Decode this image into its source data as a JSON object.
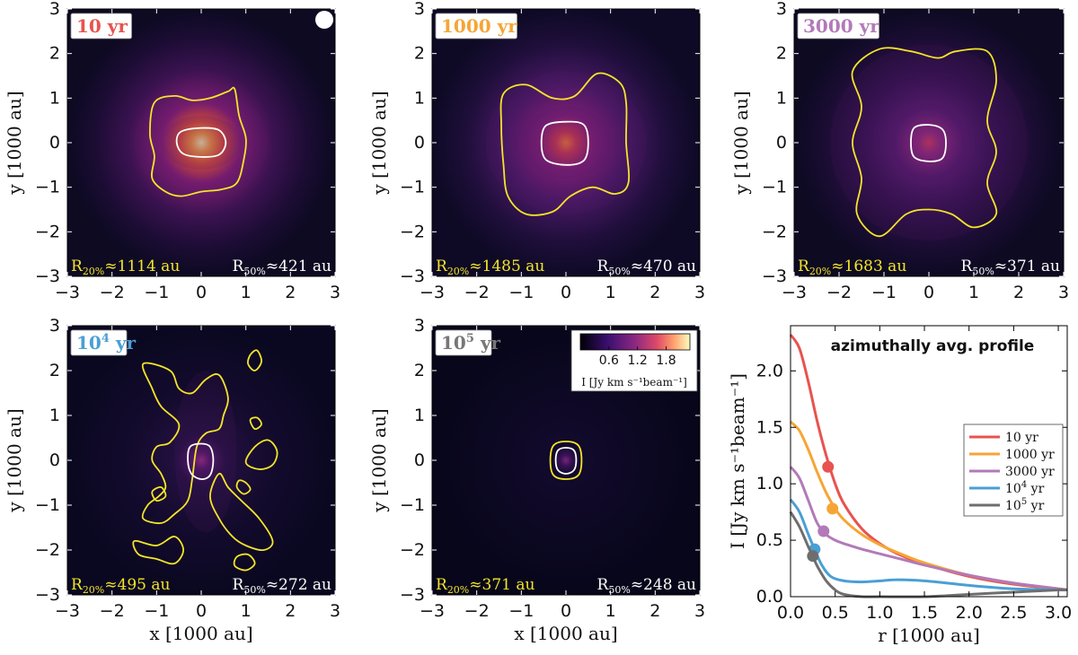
{
  "chart_data": {
    "type": "heatmap",
    "map_panels": [
      {
        "id": "p1",
        "label": "10 yr",
        "label_color": "#e8534f",
        "r20": "≈1114 au",
        "r50": "≈421 au",
        "peak": 2.32,
        "sigma": 0.55,
        "beam_marker": true
      },
      {
        "id": "p2",
        "label": "1000 yr",
        "label_color": "#f6a535",
        "r20": "≈1485 au",
        "r50": "≈470 au",
        "peak": 1.55,
        "sigma": 0.7,
        "beam_marker": false
      },
      {
        "id": "p3",
        "label": "3000 yr",
        "label_color": "#b27ab9",
        "r20": "≈1683 au",
        "r50": "≈371 au",
        "peak": 1.15,
        "sigma": 0.8,
        "beam_marker": false
      },
      {
        "id": "p4",
        "label_base": "10",
        "label_exp": "4",
        "label_tail": " yr",
        "label_color": "#4a9fd4",
        "r20": "≈495 au",
        "r50": "≈272 au",
        "peak": 0.85,
        "sigma": 0.35,
        "beam_marker": false
      },
      {
        "id": "p5",
        "label_base": "10",
        "label_exp": "5",
        "label_tail": " yr",
        "label_color": "#777777",
        "r20": "≈371 au",
        "r50": "≈248 au",
        "peak": 0.75,
        "sigma": 0.18,
        "beam_marker": false
      }
    ],
    "r20_prefix": "R",
    "r20_sub": "20%",
    "r50_prefix": "R",
    "r50_sub": "50%",
    "map_xlim": [
      -3,
      3
    ],
    "map_ylim": [
      -3,
      3
    ],
    "map_ticks": [
      -3,
      -2,
      -1,
      0,
      1,
      2,
      3
    ],
    "map_tick_labels": [
      "−3",
      "−2",
      "−1",
      "0",
      "1",
      "2",
      "3"
    ],
    "map_xlabel": "x [1000 au]",
    "map_ylabel": "y [1000 au]",
    "colorbar": {
      "ticks": [
        0.6,
        1.2,
        1.8
      ],
      "tick_labels": [
        "0.6",
        "1.2",
        "1.8"
      ],
      "range": [
        0,
        2.3
      ],
      "label": "I [Jy km s⁻¹beam⁻¹]"
    },
    "profile": {
      "type": "line",
      "title": "azimuthally avg. profile",
      "xlabel": "r [1000 au]",
      "ylabel": "I [Jy km s⁻¹beam⁻¹]",
      "xlim": [
        0,
        3.1
      ],
      "ylim": [
        0,
        2.4
      ],
      "xticks": [
        0.0,
        0.5,
        1.0,
        1.5,
        2.0,
        2.5,
        3.0
      ],
      "xtick_labels": [
        "0.0",
        "0.5",
        "1.0",
        "1.5",
        "2.0",
        "2.5",
        "3.0"
      ],
      "yticks": [
        0.0,
        0.5,
        1.0,
        1.5,
        2.0
      ],
      "ytick_labels": [
        "0.0",
        "0.5",
        "1.0",
        "1.5",
        "2.0"
      ],
      "series": [
        {
          "name": "10 yr",
          "name_base": "10 yr",
          "color": "#e8534f",
          "x": [
            0,
            0.1,
            0.2,
            0.3,
            0.4,
            0.5,
            0.6,
            0.8,
            1.0,
            1.2,
            1.5,
            2.0,
            2.5,
            3.0,
            3.1
          ],
          "y": [
            2.32,
            2.2,
            1.9,
            1.55,
            1.25,
            1.0,
            0.82,
            0.6,
            0.47,
            0.38,
            0.29,
            0.18,
            0.11,
            0.07,
            0.06
          ],
          "marker": [
            0.42,
            1.15
          ]
        },
        {
          "name": "1000 yr",
          "name_base": "1000 yr",
          "color": "#f6a535",
          "x": [
            0,
            0.1,
            0.2,
            0.3,
            0.4,
            0.5,
            0.6,
            0.8,
            1.0,
            1.2,
            1.5,
            2.0,
            2.5,
            3.0,
            3.1
          ],
          "y": [
            1.55,
            1.47,
            1.3,
            1.1,
            0.92,
            0.78,
            0.68,
            0.55,
            0.46,
            0.39,
            0.3,
            0.19,
            0.12,
            0.07,
            0.06
          ],
          "marker": [
            0.47,
            0.78
          ]
        },
        {
          "name": "3000 yr",
          "name_base": "3000 yr",
          "color": "#b27ab9",
          "x": [
            0,
            0.1,
            0.2,
            0.3,
            0.4,
            0.5,
            0.6,
            0.8,
            1.0,
            1.2,
            1.5,
            2.0,
            2.5,
            3.0,
            3.1
          ],
          "y": [
            1.15,
            1.05,
            0.85,
            0.65,
            0.55,
            0.5,
            0.47,
            0.42,
            0.38,
            0.34,
            0.28,
            0.19,
            0.12,
            0.07,
            0.06
          ],
          "marker": [
            0.37,
            0.58
          ]
        },
        {
          "name": "10⁴ yr",
          "name_base": "10",
          "name_exp": "4",
          "name_tail": " yr",
          "color": "#4a9fd4",
          "x": [
            0,
            0.1,
            0.2,
            0.27,
            0.35,
            0.45,
            0.6,
            0.8,
            1.0,
            1.2,
            1.5,
            2.0,
            2.5,
            3.0,
            3.1
          ],
          "y": [
            0.86,
            0.75,
            0.55,
            0.42,
            0.28,
            0.18,
            0.14,
            0.13,
            0.14,
            0.15,
            0.14,
            0.1,
            0.07,
            0.06,
            0.06
          ],
          "marker": [
            0.27,
            0.42
          ]
        },
        {
          "name": "10⁵ yr",
          "name_base": "10",
          "name_exp": "5",
          "name_tail": " yr",
          "color": "#6e6e6e",
          "x": [
            0,
            0.1,
            0.2,
            0.25,
            0.3,
            0.4,
            0.5,
            0.6,
            0.8,
            1.0,
            1.5,
            2.0,
            2.5,
            3.0,
            3.1
          ],
          "y": [
            0.75,
            0.62,
            0.44,
            0.36,
            0.27,
            0.14,
            0.06,
            0.02,
            0.0,
            0.0,
            0.0,
            0.02,
            0.04,
            0.06,
            0.06
          ],
          "marker": [
            0.25,
            0.36
          ]
        }
      ]
    }
  }
}
